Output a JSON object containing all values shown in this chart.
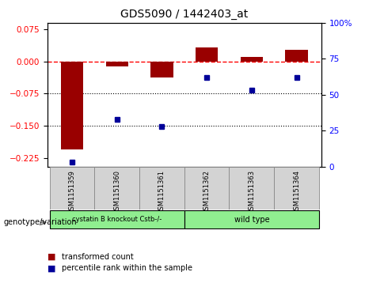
{
  "title": "GDS5090 / 1442403_at",
  "samples": [
    "GSM1151359",
    "GSM1151360",
    "GSM1151361",
    "GSM1151362",
    "GSM1151363",
    "GSM1151364"
  ],
  "red_values": [
    -0.205,
    -0.012,
    -0.038,
    0.033,
    0.011,
    0.027
  ],
  "blue_values_pct": [
    3,
    33,
    28,
    62,
    53,
    62
  ],
  "ylim_left": [
    -0.245,
    0.09
  ],
  "ylim_right": [
    0,
    100
  ],
  "yticks_left": [
    0.075,
    0,
    -0.075,
    -0.15,
    -0.225
  ],
  "yticks_right": [
    100,
    75,
    50,
    25,
    0
  ],
  "dotted_lines": [
    -0.075,
    -0.15
  ],
  "group1_label": "cystatin B knockout Cstb-/-",
  "group2_label": "wild type",
  "group1_color": "#90EE90",
  "group2_color": "#90EE90",
  "bar_color": "#990000",
  "dot_color": "#000099",
  "legend_red": "transformed count",
  "legend_blue": "percentile rank within the sample",
  "genotype_label": "genotype/variation",
  "background_color": "#ffffff",
  "bar_width": 0.5
}
